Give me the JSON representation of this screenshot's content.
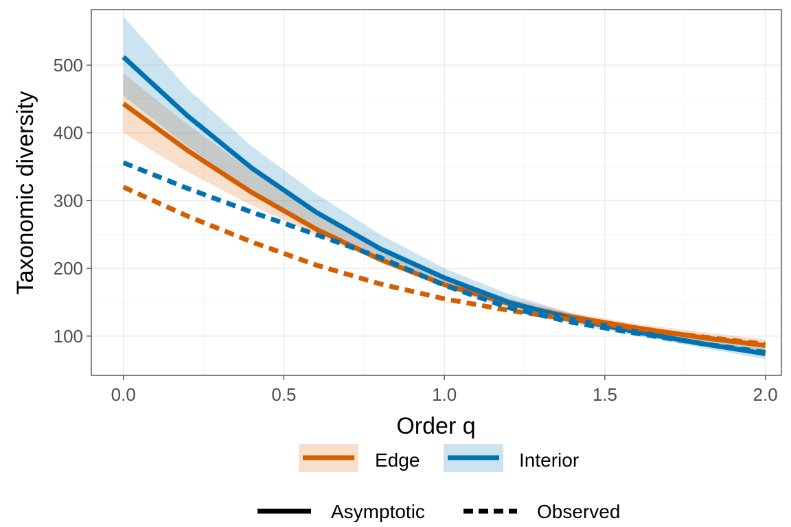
{
  "chart_data": {
    "type": "line",
    "xlabel": "Order q",
    "ylabel": "Taxonomic diversity",
    "xlim": [
      -0.1,
      2.05
    ],
    "ylim": [
      42,
      582
    ],
    "x_ticks": [
      0.0,
      0.5,
      1.0,
      1.5,
      2.0
    ],
    "x_tick_labels": [
      "0.0",
      "0.5",
      "1.0",
      "1.5",
      "2.0"
    ],
    "y_ticks": [
      100,
      200,
      300,
      400,
      500
    ],
    "y_tick_labels": [
      "100",
      "200",
      "300",
      "400",
      "500"
    ],
    "grid": true,
    "legend": {
      "position": "bottom",
      "groups": [
        {
          "items": [
            {
              "label": "Edge",
              "color": "#D55E00"
            },
            {
              "label": "Interior",
              "color": "#0072B2"
            }
          ]
        },
        {
          "items": [
            {
              "label": "Asymptotic",
              "linetype": "solid"
            },
            {
              "label": "Observed",
              "linetype": "dashed"
            }
          ]
        }
      ]
    },
    "x": [
      0.0,
      0.2,
      0.4,
      0.6,
      0.8,
      1.0,
      1.2,
      1.4,
      1.6,
      1.8,
      2.0
    ],
    "series": [
      {
        "name": "Edge",
        "linetype": "Asymptotic",
        "color": "#D55E00",
        "values": [
          443,
          374,
          312,
          258,
          213,
          176,
          148,
          128,
          112,
          98,
          86
        ],
        "lower": [
          400,
          342,
          293,
          249,
          210,
          173,
          145,
          124,
          106,
          91,
          79
        ],
        "upper": [
          488,
          412,
          344,
          282,
          228,
          185,
          156,
          134,
          118,
          106,
          95
        ]
      },
      {
        "name": "Interior",
        "linetype": "Asymptotic",
        "color": "#0072B2",
        "values": [
          512,
          425,
          348,
          283,
          229,
          186,
          150,
          125,
          106,
          89,
          74
        ],
        "lower": [
          455,
          380,
          315,
          259,
          210,
          172,
          140,
          118,
          100,
          83,
          66
        ],
        "upper": [
          572,
          465,
          380,
          310,
          250,
          200,
          162,
          133,
          112,
          96,
          82
        ]
      },
      {
        "name": "Edge",
        "linetype": "Observed",
        "color": "#D55E00",
        "values": [
          320,
          277,
          239,
          205,
          177,
          155,
          138,
          124,
          111,
          99,
          88
        ]
      },
      {
        "name": "Interior",
        "linetype": "Observed",
        "color": "#0072B2",
        "values": [
          356,
          318,
          283,
          250,
          216,
          175,
          142,
          120,
          104,
          89,
          76
        ]
      }
    ]
  }
}
